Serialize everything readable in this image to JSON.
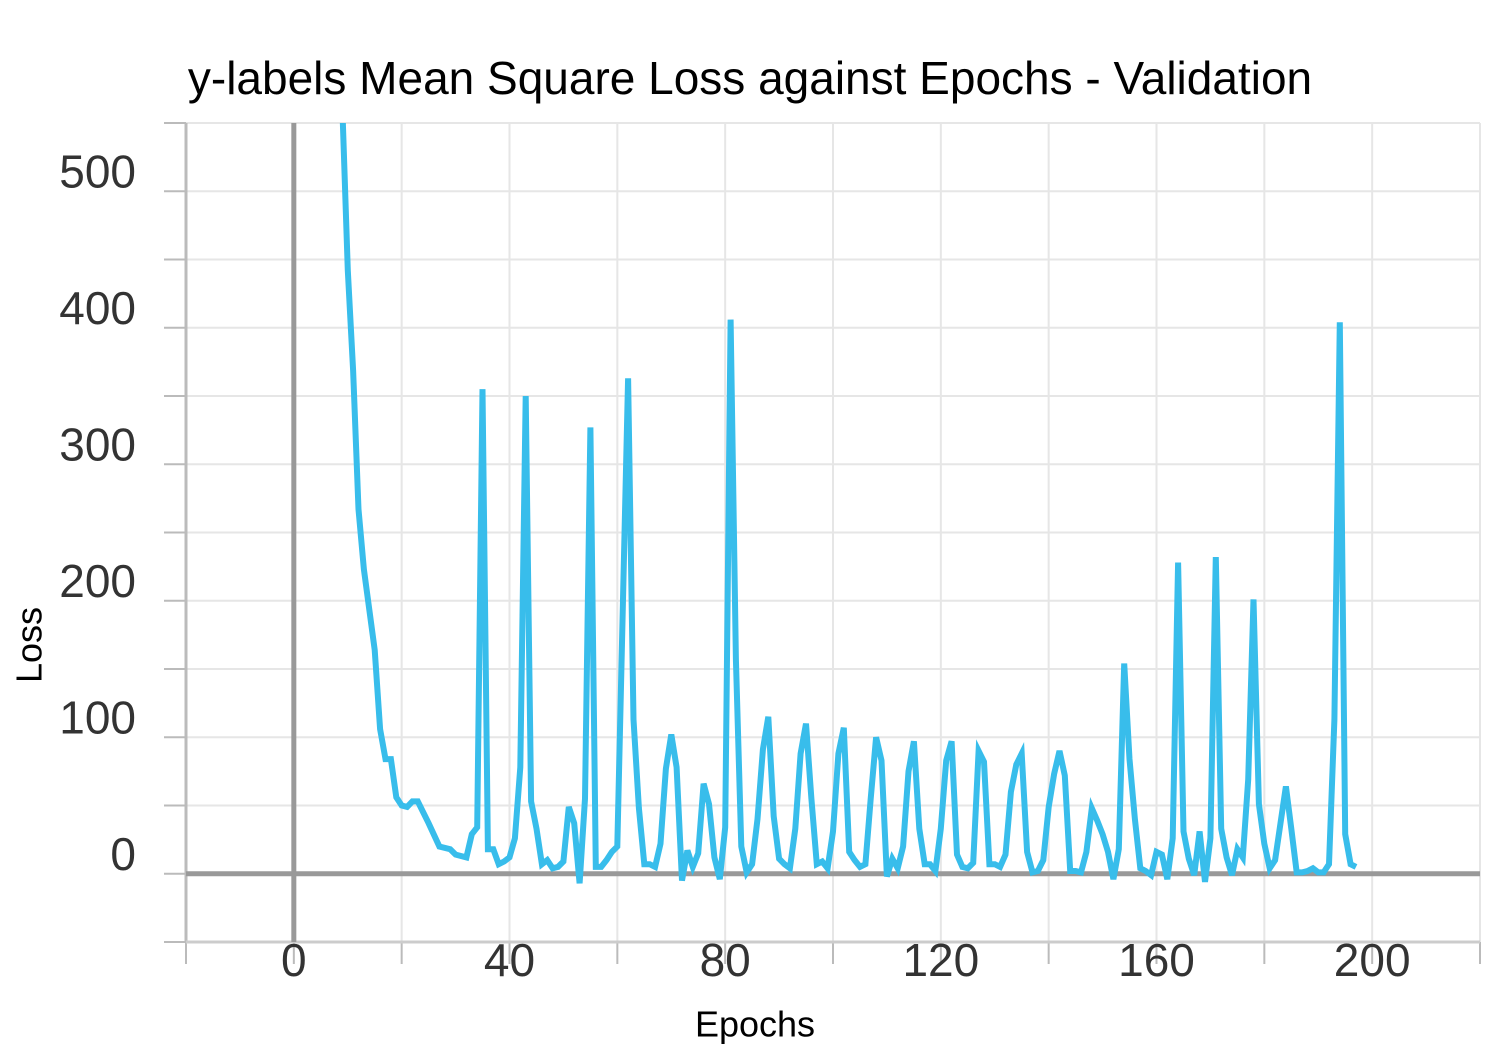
{
  "chart_data": {
    "type": "line",
    "title": "y-labels Mean Square Loss against Epochs - Validation",
    "xlabel": "Epochs",
    "ylabel": "Loss",
    "xlim": [
      -20,
      220
    ],
    "xticks": [
      0,
      40,
      80,
      120,
      160,
      200
    ],
    "xticks_minor": [
      -20,
      20,
      60,
      100,
      140,
      180,
      220
    ],
    "ylim": [
      -50,
      550
    ],
    "yticks": [
      0,
      100,
      200,
      300,
      400,
      500
    ],
    "yticks_minor": [
      -50,
      50,
      150,
      250,
      350,
      450,
      550
    ],
    "grid": true,
    "x": [
      9,
      10,
      11,
      12,
      13,
      15,
      16,
      17,
      18,
      19,
      20,
      21,
      22,
      23,
      25,
      27,
      29,
      30,
      32,
      33,
      34,
      35,
      36,
      37,
      38,
      39,
      40,
      41,
      42,
      43,
      44,
      45,
      46,
      47,
      48,
      49,
      50,
      51,
      52,
      53,
      54,
      55,
      56,
      57,
      58,
      59,
      60,
      62,
      63,
      64,
      65,
      66,
      67,
      68,
      69,
      70,
      71,
      72,
      73,
      74,
      75,
      76,
      77,
      78,
      79,
      80,
      81,
      82,
      83,
      84,
      85,
      86,
      87,
      88,
      89,
      90,
      91,
      92,
      93,
      94,
      95,
      96,
      97,
      98,
      99,
      100,
      101,
      102,
      103,
      104,
      105,
      106,
      107,
      108,
      109,
      110,
      111,
      112,
      113,
      114,
      115,
      116,
      117,
      118,
      119,
      120,
      121,
      122,
      123,
      124,
      125,
      126,
      127,
      128,
      129,
      130,
      131,
      132,
      133,
      134,
      135,
      136,
      137,
      138,
      139,
      140,
      141,
      142,
      143,
      144,
      145,
      146,
      147,
      148,
      149,
      150,
      151,
      152,
      153,
      154,
      155,
      156,
      157,
      158,
      159,
      160,
      161,
      162,
      163,
      164,
      165,
      166,
      167,
      168,
      169,
      170,
      171,
      172,
      173,
      174,
      175,
      176,
      177,
      178,
      179,
      180,
      181,
      182,
      183,
      184,
      185,
      186,
      187,
      188,
      189,
      190,
      191,
      192,
      193,
      194,
      195,
      196,
      197
    ],
    "series": [
      {
        "name": "Loss",
        "color": "#38bdeb",
        "values": [
          560,
          442,
          369,
          267,
          223,
          164,
          106,
          84,
          84,
          56,
          50,
          49,
          53,
          53,
          37,
          20,
          18,
          14,
          12,
          29,
          34,
          355,
          18,
          18,
          7,
          9,
          12,
          26,
          78,
          350,
          53,
          33,
          7,
          10,
          4,
          5,
          9,
          49,
          37,
          -7,
          55,
          327,
          5,
          5,
          10,
          16,
          20,
          363,
          113,
          48,
          7,
          7,
          5,
          22,
          77,
          102,
          78,
          -5,
          17,
          5,
          15,
          66,
          51,
          12,
          -4,
          34,
          406,
          157,
          20,
          1,
          7,
          40,
          91,
          115,
          42,
          11,
          7,
          4,
          33,
          88,
          110,
          55,
          7,
          9,
          4,
          31,
          88,
          107,
          16,
          10,
          5,
          7,
          55,
          100,
          83,
          -2,
          11,
          4,
          20,
          75,
          97,
          33,
          7,
          7,
          2,
          33,
          83,
          97,
          14,
          5,
          4,
          8,
          90,
          82,
          7,
          7,
          5,
          14,
          60,
          80,
          88,
          16,
          1,
          2,
          10,
          49,
          73,
          90,
          72,
          2,
          2,
          1,
          16,
          48,
          39,
          29,
          16,
          -4,
          18,
          154,
          84,
          40,
          4,
          2,
          -1,
          16,
          14,
          -4,
          26,
          228,
          31,
          11,
          -1,
          31,
          -6,
          26,
          232,
          33,
          12,
          -1,
          18,
          12,
          69,
          201,
          51,
          22,
          4,
          10,
          37,
          64,
          33,
          1,
          1,
          2,
          4,
          1,
          1,
          7,
          113,
          404,
          29,
          7,
          5
        ]
      }
    ]
  }
}
